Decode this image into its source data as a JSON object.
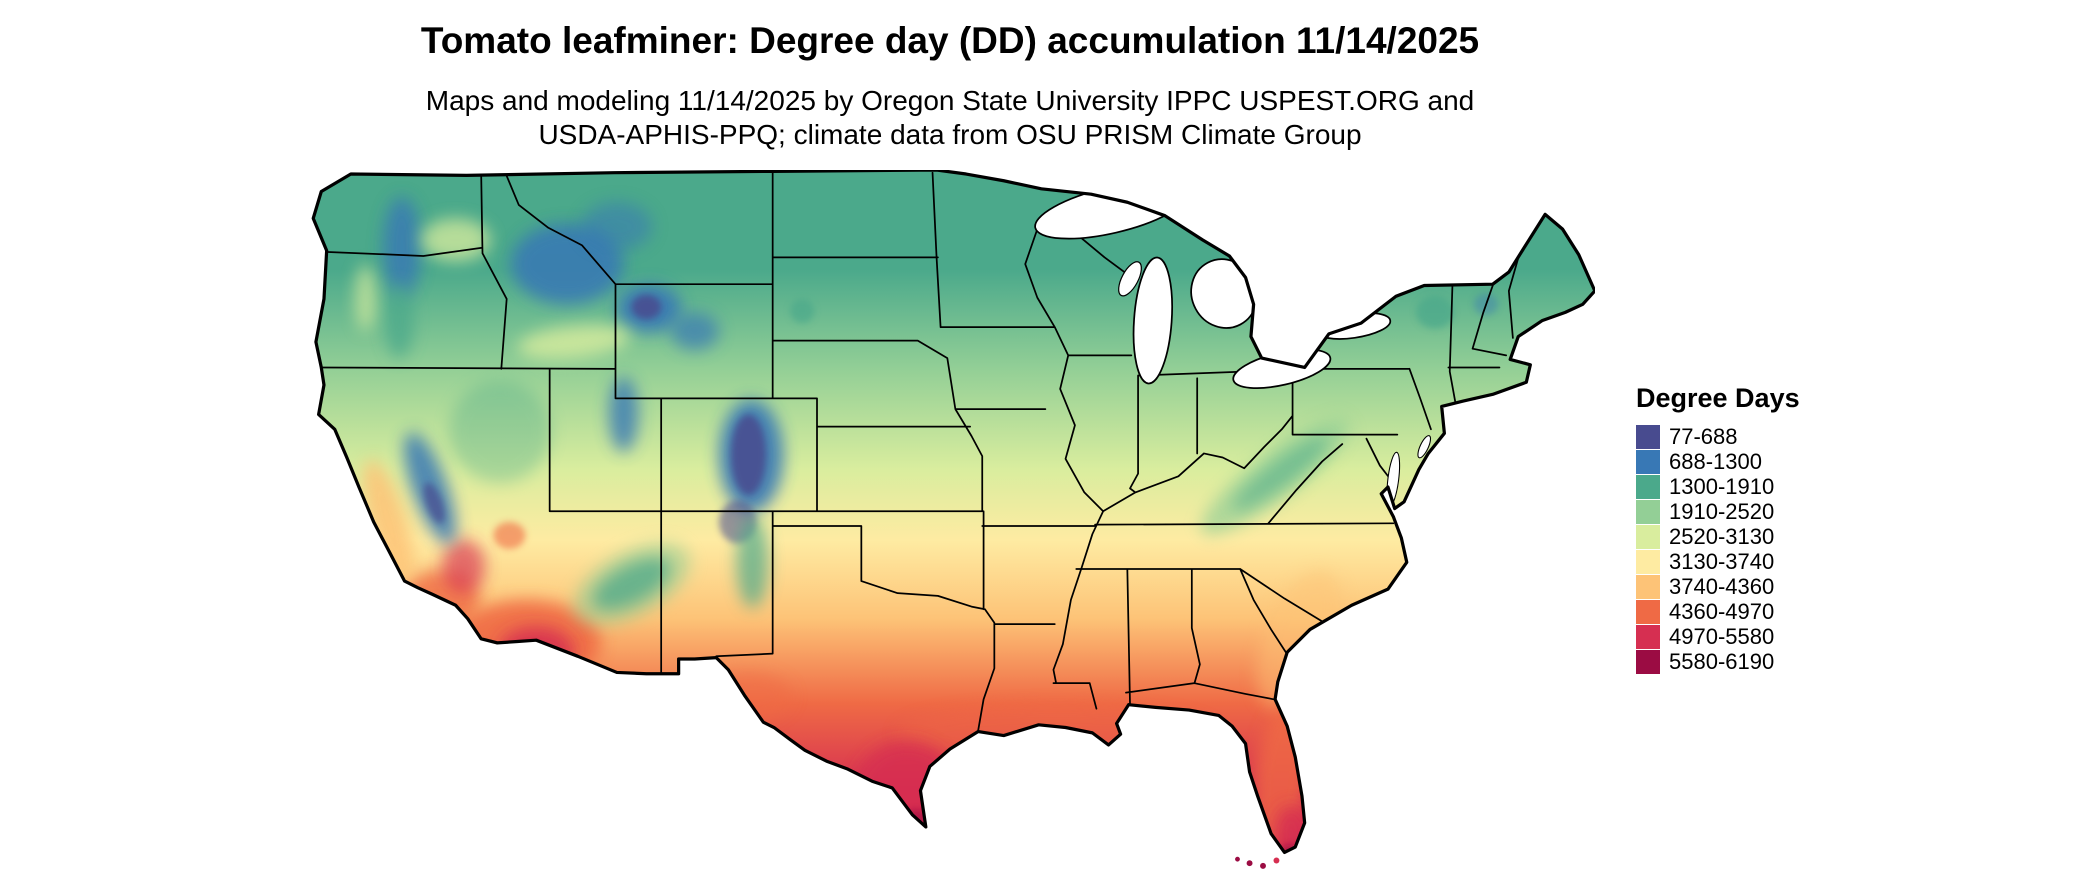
{
  "page": {
    "title": "Tomato leafminer: Degree day (DD) accumulation 11/14/2025",
    "subtitle_line1": "Maps and modeling 11/14/2025 by Oregon State University IPPC USPEST.ORG and",
    "subtitle_line2": "USDA-APHIS-PPQ; climate data from OSU PRISM Climate Group"
  },
  "legend": {
    "title": "Degree Days",
    "items": [
      {
        "label": "77-688",
        "color": "#484b8f"
      },
      {
        "label": "688-1300",
        "color": "#3878b5"
      },
      {
        "label": "1300-1910",
        "color": "#4ba98b"
      },
      {
        "label": "1910-2520",
        "color": "#93cf96"
      },
      {
        "label": "2520-3130",
        "color": "#d9ed9e"
      },
      {
        "label": "3130-3740",
        "color": "#feeba2"
      },
      {
        "label": "3740-4360",
        "color": "#fdc377"
      },
      {
        "label": "4360-4970",
        "color": "#ef6a45"
      },
      {
        "label": "4970-5580",
        "color": "#d62f51"
      },
      {
        "label": "5580-6190",
        "color": "#9b0c43"
      }
    ]
  },
  "map": {
    "region_label": "Continental United States degree-day accumulation map"
  },
  "chart_data": {
    "type": "heatmap",
    "title": "Tomato leafminer: Degree day (DD) accumulation 11/14/2025",
    "legend_title": "Degree Days",
    "bins": [
      "77-688",
      "688-1300",
      "1300-1910",
      "1910-2520",
      "2520-3130",
      "3130-3740",
      "3740-4360",
      "4360-4970",
      "4970-5580",
      "5580-6190"
    ],
    "bin_colors": [
      "#484b8f",
      "#3878b5",
      "#4ba98b",
      "#93cf96",
      "#d9ed9e",
      "#feeba2",
      "#fdc377",
      "#ef6a45",
      "#d62f51",
      "#9b0c43"
    ],
    "pattern": "Accumulated degree days increase from north (low: blue/teal) to south (high: orange/red); lowest values over Rocky Mountain, Sierra and Cascade highlands; highest values in desert Southwest, south Texas and south Florida."
  }
}
